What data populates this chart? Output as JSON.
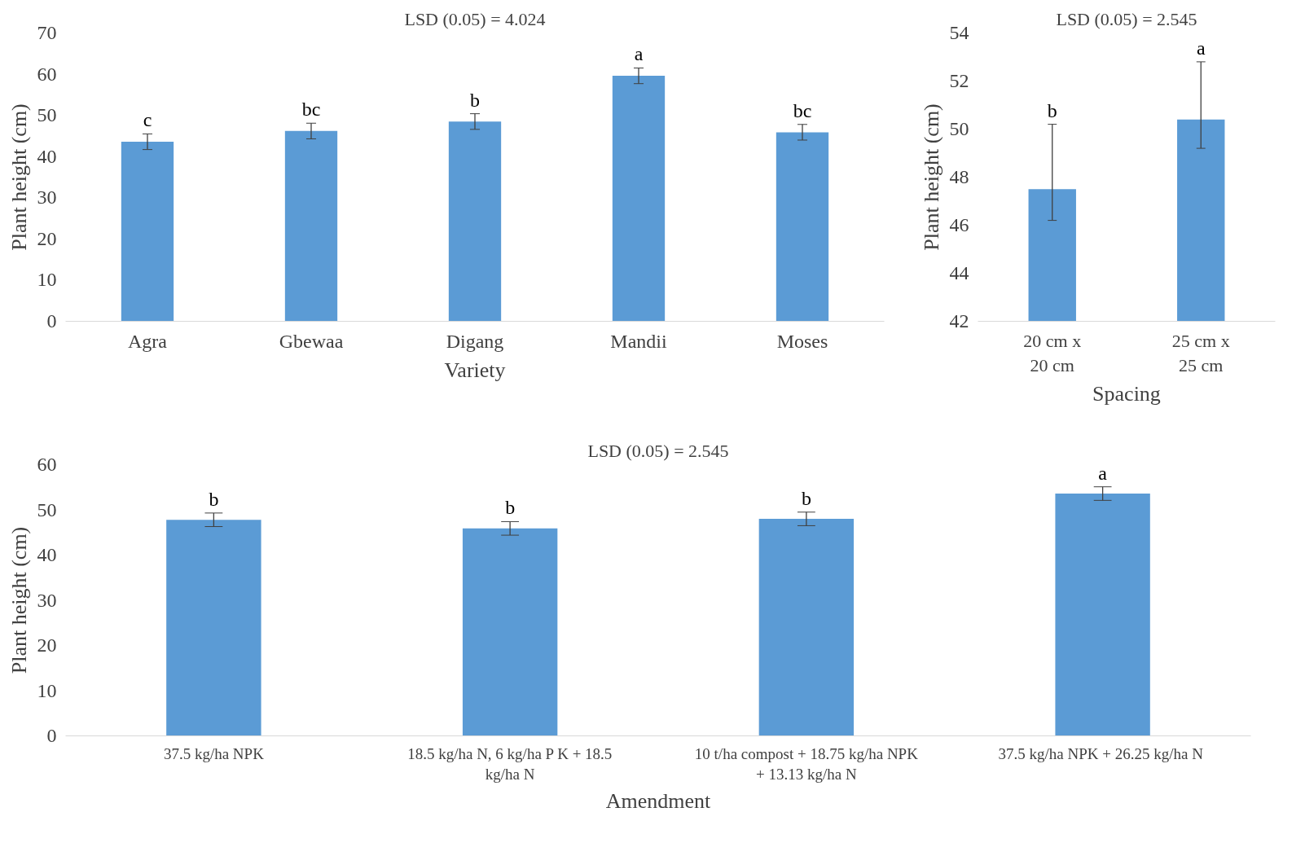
{
  "chart_data": [
    {
      "type": "bar",
      "title": "LSD (0.05) = 4.024",
      "xlabel": "Variety",
      "ylabel": "Plant height (cm)",
      "categories": [
        "Agra",
        "Gbewaa",
        "Digang",
        "Mandii",
        "Moses"
      ],
      "values": [
        43.6,
        46.2,
        48.5,
        59.6,
        45.9
      ],
      "color": "#5b9bd5",
      "errors": [
        1.9,
        1.9,
        1.9,
        1.9,
        1.9
      ],
      "ylim": [
        0,
        70
      ],
      "yticks": [
        0,
        10,
        20,
        30,
        40,
        50,
        60,
        70
      ],
      "grid": false,
      "annotations": [
        {
          "text": "c",
          "x": "Agra",
          "y": 45.5
        },
        {
          "text": "bc",
          "x": "Gbewaa",
          "y": 48.1
        },
        {
          "text": "b",
          "x": "Digang",
          "y": 50.4
        },
        {
          "text": "a",
          "x": "Mandii",
          "y": 61.5
        },
        {
          "text": "bc",
          "x": "Moses",
          "y": 47.8
        }
      ]
    },
    {
      "type": "bar",
      "title": "LSD (0.05) = 2.545",
      "xlabel": "Spacing",
      "ylabel": "Plant height (cm)",
      "categories": [
        "20 cm x 20 cm",
        "25 cm x 25 cm"
      ],
      "values": [
        47.5,
        50.4
      ],
      "color": "#5b9bd5",
      "errors": [
        [
          46.2,
          50.2
        ],
        [
          49.2,
          52.8
        ]
      ],
      "ylim": [
        42,
        54
      ],
      "yticks": [
        42,
        44,
        46,
        48,
        50,
        52,
        54
      ],
      "grid": false,
      "annotations": [
        {
          "text": "b",
          "x": "20 cm x 20 cm",
          "y": 50.2
        },
        {
          "text": "a",
          "x": "25 cm x 25 cm",
          "y": 52.8
        }
      ]
    },
    {
      "type": "bar",
      "title": "LSD (0.05) = 2.545",
      "xlabel": "Amendment",
      "ylabel": "Plant height (cm)",
      "categories": [
        "37.5 kg/ha NPK",
        "18.5 kg/ha N, 6 kg/ha P K + 18.5 kg/ha N",
        "10 t/ha compost + 18.75 kg/ha NPK + 13.13 kg/ha N",
        "37.5 kg/ha NPK  + 26.25 kg/ha N"
      ],
      "values": [
        47.8,
        45.9,
        48.0,
        53.6
      ],
      "color": "#5b9bd5",
      "errors": [
        1.5,
        1.5,
        1.5,
        1.5
      ],
      "ylim": [
        0,
        60
      ],
      "yticks": [
        0,
        10,
        20,
        30,
        40,
        50,
        60
      ],
      "grid": false,
      "annotations": [
        {
          "text": "b",
          "x": "37.5 kg/ha NPK",
          "y": 49.3
        },
        {
          "text": "b",
          "x": "18.5 kg/ha N, 6 kg/ha P K + 18.5 kg/ha N",
          "y": 47.4
        },
        {
          "text": "b",
          "x": "10 t/ha compost + 18.75 kg/ha NPK + 13.13 kg/ha N",
          "y": 49.5
        },
        {
          "text": "a",
          "x": "37.5 kg/ha NPK  + 26.25 kg/ha N",
          "y": 55.1
        }
      ]
    }
  ]
}
